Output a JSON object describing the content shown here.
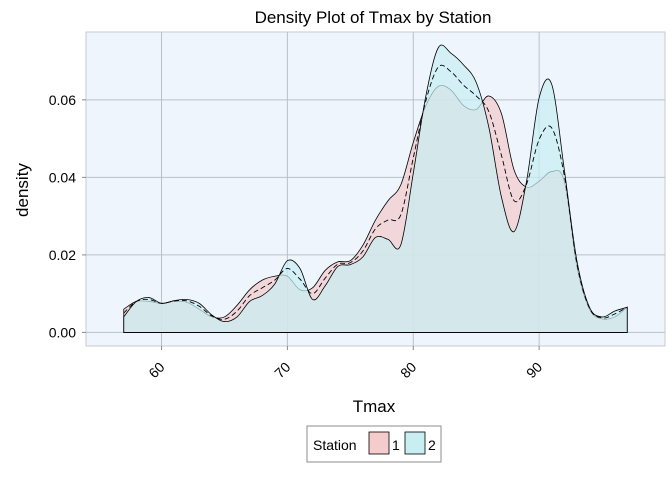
{
  "chart_data": {
    "type": "area",
    "title": "Density Plot of Tmax by Station",
    "xlabel": "Tmax",
    "ylabel": "density",
    "xlim": [
      54.0,
      100.0
    ],
    "ylim": [
      -0.0035,
      0.0775
    ],
    "xticks": [
      60,
      70,
      80,
      90
    ],
    "yticks": [
      0.0,
      0.02,
      0.04,
      0.06
    ],
    "ytick_labels": [
      "0.00",
      "0.02",
      "0.04",
      "0.06"
    ],
    "grid": true,
    "legend": {
      "title": "Station",
      "position": "bottom"
    },
    "series": [
      {
        "name": "1",
        "fill": "#f4cccc",
        "x": [
          57,
          58,
          59,
          60,
          61,
          62,
          63,
          64,
          65,
          66,
          67,
          68,
          69,
          70,
          71,
          72,
          73,
          74,
          75,
          76,
          77,
          78,
          79,
          80,
          81,
          82,
          83,
          84,
          85,
          86,
          87,
          88,
          89,
          90,
          91,
          92,
          93,
          94,
          95,
          96,
          97
        ],
        "values": [
          0.006,
          0.008,
          0.008,
          0.0075,
          0.008,
          0.0078,
          0.006,
          0.004,
          0.004,
          0.007,
          0.011,
          0.0135,
          0.0145,
          0.0145,
          0.011,
          0.0115,
          0.016,
          0.0182,
          0.0185,
          0.0225,
          0.029,
          0.034,
          0.038,
          0.049,
          0.0585,
          0.0635,
          0.0625,
          0.0585,
          0.0575,
          0.061,
          0.0565,
          0.042,
          0.0375,
          0.039,
          0.0415,
          0.039,
          0.017,
          0.006,
          0.0035,
          0.004,
          0.0065
        ]
      },
      {
        "name": "2",
        "fill": "#c8eef2",
        "x": [
          57,
          58,
          59,
          60,
          61,
          62,
          63,
          64,
          65,
          66,
          67,
          68,
          69,
          70,
          71,
          72,
          73,
          74,
          75,
          76,
          77,
          78,
          79,
          80,
          81,
          82,
          83,
          84,
          85,
          86,
          87,
          88,
          89,
          90,
          91,
          92,
          93,
          94,
          95,
          96,
          97
        ],
        "values": [
          0.004,
          0.008,
          0.009,
          0.0075,
          0.0082,
          0.0085,
          0.0075,
          0.0045,
          0.0028,
          0.004,
          0.008,
          0.0095,
          0.0125,
          0.0185,
          0.0165,
          0.0085,
          0.012,
          0.017,
          0.0175,
          0.0195,
          0.0245,
          0.024,
          0.0225,
          0.041,
          0.061,
          0.0735,
          0.072,
          0.069,
          0.0645,
          0.053,
          0.035,
          0.026,
          0.039,
          0.0605,
          0.064,
          0.042,
          0.0185,
          0.0065,
          0.004,
          0.0055,
          0.0065
        ]
      }
    ]
  }
}
